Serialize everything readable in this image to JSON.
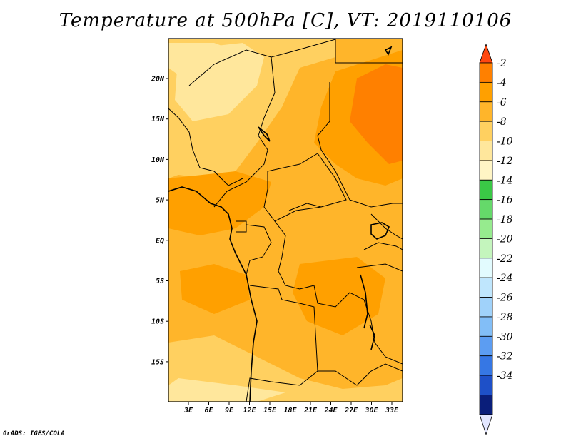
{
  "title": "Temperature at 500hPa [C], VT: 2019110106",
  "credit": "GrADS: IGES/COLA",
  "map": {
    "lat_labels": [
      "20N",
      "15N",
      "10N",
      "5N",
      "EQ",
      "5S",
      "10S",
      "15S"
    ],
    "lon_labels": [
      "3E",
      "6E",
      "9E",
      "12E",
      "15E",
      "18E",
      "21E",
      "24E",
      "27E",
      "30E",
      "33E"
    ]
  },
  "colorbar": {
    "labels": [
      "-2",
      "-4",
      "-6",
      "-8",
      "-10",
      "-12",
      "-14",
      "-16",
      "-18",
      "-20",
      "-22",
      "-24",
      "-26",
      "-28",
      "-30",
      "-32",
      "-34"
    ],
    "colors": [
      "#ff8000",
      "#ffa000",
      "#ffb52a",
      "#ffd060",
      "#ffe79c",
      "#fff5c5",
      "#3ac846",
      "#65d96a",
      "#96eb8e",
      "#c4f5bd",
      "#e2fbfe",
      "#bfe6fd",
      "#a0d2fa",
      "#82bef7",
      "#5c9df2",
      "#3677e4",
      "#1e50c8",
      "#0a1e7a"
    ],
    "over_color": "#ff4810",
    "under_color": "#e2e6ff"
  }
}
